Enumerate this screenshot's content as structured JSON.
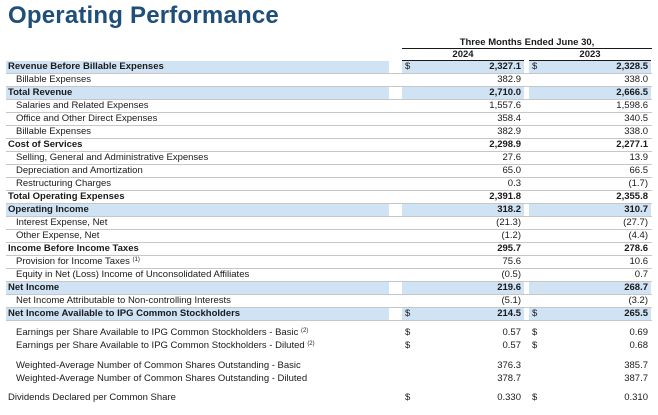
{
  "title": "Operating Performance",
  "period_header": "Three Months Ended June 30,",
  "columns": [
    "2024",
    "2023"
  ],
  "rows": [
    {
      "label": "Revenue Before Billable Expenses",
      "cur1": "$",
      "v2024": "2,327.1",
      "cur2": "$",
      "v2023": "2,328.5"
    },
    {
      "label": "Billable Expenses",
      "v2024": "382.9",
      "v2023": "338.0"
    },
    {
      "label": "Total Revenue",
      "v2024": "2,710.0",
      "v2023": "2,666.5"
    },
    {
      "label": "Salaries and Related Expenses",
      "v2024": "1,557.6",
      "v2023": "1,598.6"
    },
    {
      "label": "Office and Other Direct Expenses",
      "v2024": "358.4",
      "v2023": "340.5"
    },
    {
      "label": "Billable Expenses",
      "v2024": "382.9",
      "v2023": "338.0"
    },
    {
      "label": "Cost of Services",
      "v2024": "2,298.9",
      "v2023": "2,277.1"
    },
    {
      "label": "Selling, General and Administrative Expenses",
      "v2024": "27.6",
      "v2023": "13.9"
    },
    {
      "label": "Depreciation and Amortization",
      "v2024": "65.0",
      "v2023": "66.5"
    },
    {
      "label": "Restructuring Charges",
      "v2024": "0.3",
      "v2023": "(1.7)"
    },
    {
      "label": "Total Operating Expenses",
      "v2024": "2,391.8",
      "v2023": "2,355.8"
    },
    {
      "label": "Operating Income",
      "v2024": "318.2",
      "v2023": "310.7"
    },
    {
      "label": "Interest Expense, Net",
      "v2024": "(21.3)",
      "v2023": "(27.7)"
    },
    {
      "label": "Other Expense, Net",
      "v2024": "(1.2)",
      "v2023": "(4.4)"
    },
    {
      "label": "Income Before Income Taxes",
      "v2024": "295.7",
      "v2023": "278.6"
    },
    {
      "label": "Provision for Income Taxes",
      "note": "(1)",
      "v2024": "75.6",
      "v2023": "10.6"
    },
    {
      "label": "Equity in Net (Loss) Income of Unconsolidated Affiliates",
      "v2024": "(0.5)",
      "v2023": "0.7"
    },
    {
      "label": "Net Income",
      "v2024": "219.6",
      "v2023": "268.7"
    },
    {
      "label": "Net Income Attributable to Non-controlling Interests",
      "v2024": "(5.1)",
      "v2023": "(3.2)"
    },
    {
      "label": "Net Income Available to IPG Common Stockholders",
      "cur1": "$",
      "v2024": "214.5",
      "cur2": "$",
      "v2023": "265.5"
    },
    {
      "label": "Earnings per Share Available to IPG Common Stockholders - Basic",
      "note": "(2)",
      "cur1": "$",
      "v2024": "0.57",
      "cur2": "$",
      "v2023": "0.69"
    },
    {
      "label": "Earnings per Share Available to IPG Common Stockholders - Diluted",
      "note": "(2)",
      "cur1": "$",
      "v2024": "0.57",
      "cur2": "$",
      "v2023": "0.68"
    },
    {
      "label": "Weighted-Average Number of Common Shares Outstanding - Basic",
      "v2024": "376.3",
      "v2023": "385.7"
    },
    {
      "label": "Weighted-Average Number of Common Shares Outstanding - Diluted",
      "v2024": "378.7",
      "v2023": "387.7"
    },
    {
      "label": "Dividends Declared per Common Share",
      "cur1": "$",
      "v2024": "0.330",
      "cur2": "$",
      "v2023": "0.310"
    }
  ]
}
